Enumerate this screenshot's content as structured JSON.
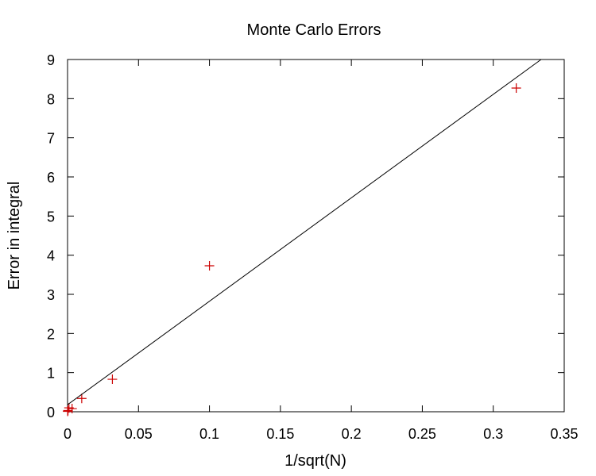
{
  "chart_data": {
    "type": "scatter",
    "title": "Monte Carlo Errors",
    "xlabel": "1/sqrt(N)",
    "ylabel": "Error in integral",
    "xlim": [
      0,
      0.35
    ],
    "ylim": [
      0,
      9
    ],
    "xticks": [
      0,
      0.05,
      0.1,
      0.15,
      0.2,
      0.25,
      0.3,
      0.35
    ],
    "xtick_labels": [
      "0",
      "0.05",
      "0.1",
      "0.15",
      "0.2",
      "0.25",
      "0.3",
      "0.35"
    ],
    "yticks": [
      0,
      1,
      2,
      3,
      4,
      5,
      6,
      7,
      8,
      9
    ],
    "ytick_labels": [
      "0",
      "1",
      "2",
      "3",
      "4",
      "5",
      "6",
      "7",
      "8",
      "9"
    ],
    "grid": false,
    "legend": "none",
    "marker_color": "#cc0000",
    "line_color": "#000000",
    "series": [
      {
        "type": "scatter",
        "marker": "plus",
        "x": [
          0.3162,
          0.1,
          0.0316,
          0.01,
          0.0032,
          0.001,
          0.0003,
          0.0001
        ],
        "y": [
          8.27,
          3.73,
          0.83,
          0.34,
          0.08,
          0.1,
          0.03,
          0.01
        ]
      },
      {
        "type": "line",
        "x": [
          0,
          0.3337
        ],
        "y": [
          0.18,
          9
        ]
      }
    ]
  }
}
